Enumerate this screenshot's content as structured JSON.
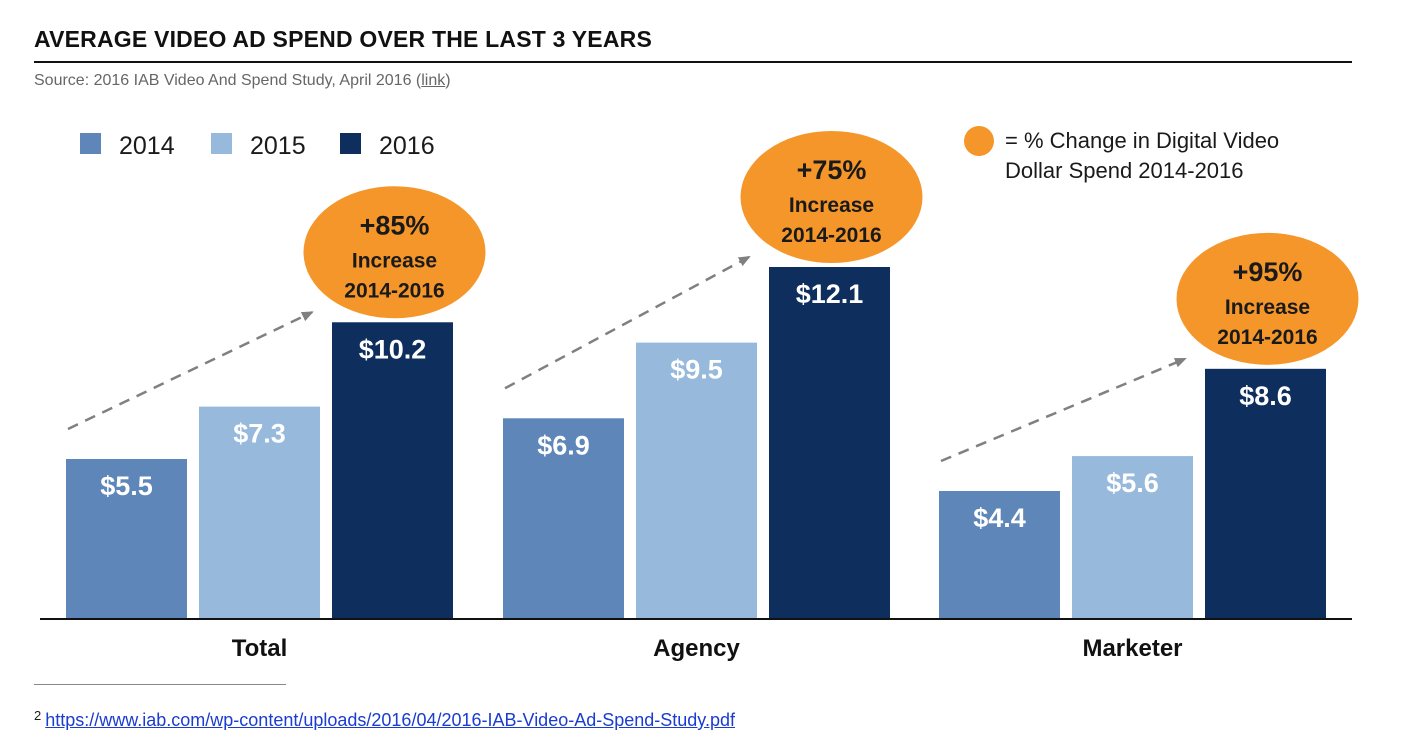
{
  "title": "AVERAGE VIDEO AD SPEND OVER THE LAST 3 YEARS",
  "source": {
    "prefix": "Source: 2016 IAB Video And Spend Study, April 2016 (",
    "link_text": "link",
    "suffix": ")"
  },
  "bubble_legend": {
    "line1": "= % Change in Digital Video",
    "line2": "Dollar Spend 2014-2016"
  },
  "footnote": {
    "number": "2",
    "url": "https://www.iab.com/wp-content/uploads/2016/04/2016-IAB-Video-Ad-Spend-Study.pdf"
  },
  "colors": {
    "2014": "#5f86b8",
    "2015": "#97b9db",
    "2016": "#0e2e5e",
    "bubble": "#f5962a",
    "arrow": "#808080"
  },
  "chart_data": {
    "type": "bar",
    "title": "AVERAGE VIDEO AD SPEND OVER THE LAST 3 YEARS",
    "xlabel": "",
    "ylabel": "",
    "ylim": [
      0,
      14
    ],
    "grid": false,
    "legend_position": "top-left",
    "categories": [
      "Total",
      "Agency",
      "Marketer"
    ],
    "series": [
      {
        "name": "2014",
        "values": [
          5.5,
          6.9,
          4.4
        ],
        "labels": [
          "$5.5",
          "$6.9",
          "$4.4"
        ]
      },
      {
        "name": "2015",
        "values": [
          7.3,
          9.5,
          5.6
        ],
        "labels": [
          "$7.3",
          "$9.5",
          "$5.6"
        ]
      },
      {
        "name": "2016",
        "values": [
          10.2,
          12.1,
          8.6
        ],
        "labels": [
          "$10.2",
          "$12.1",
          "$8.6"
        ]
      }
    ],
    "annotations": [
      {
        "category": "Total",
        "change": "+85%",
        "line1": "Increase",
        "line2": "2014-2016"
      },
      {
        "category": "Agency",
        "change": "+75%",
        "line1": "Increase",
        "line2": "2014-2016"
      },
      {
        "category": "Marketer",
        "change": "+95%",
        "line1": "Increase",
        "line2": "2014-2016"
      }
    ]
  }
}
